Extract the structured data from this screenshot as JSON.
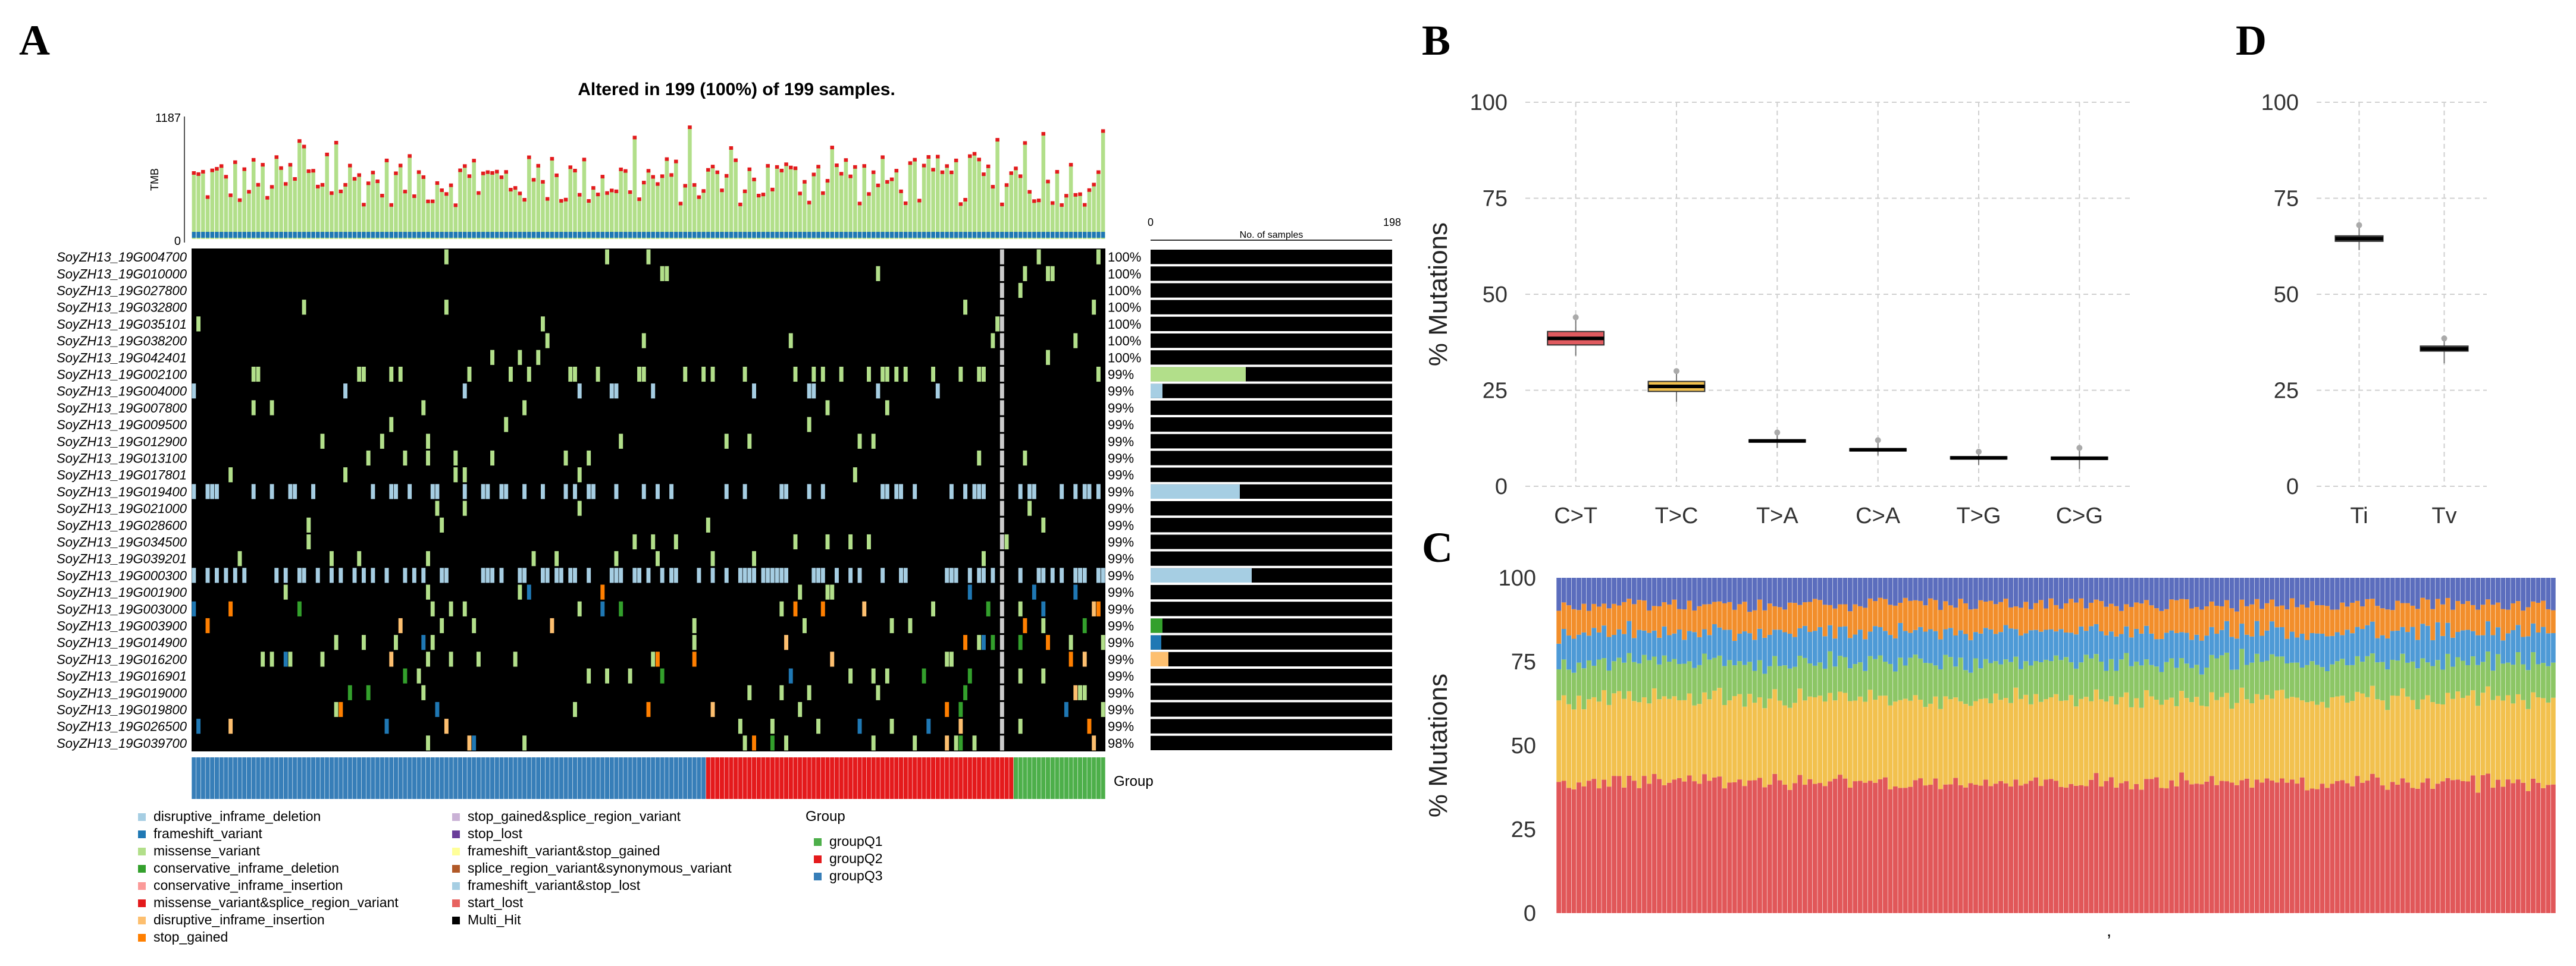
{
  "colors": {
    "disruptive_inframe_deletion": "#a6cee3",
    "frameshift_variant": "#1f78b4",
    "missense_variant": "#b2df8a",
    "conservative_inframe_deletion": "#33a02c",
    "conservative_inframe_insertion": "#fb9a99",
    "missense_variant&splice_region_variant": "#e31a1c",
    "disruptive_inframe_insertion": "#fdbf6f",
    "stop_gained": "#ff7f00",
    "stop_gained&splice_region_variant": "#cab2d6",
    "stop_lost": "#6a3d9a",
    "frameshift_variant&stop_gained": "#ffff99",
    "splice_region_variant&synonymous_variant": "#b15928",
    "frameshift_variant&stop_lost": "#a6cee3",
    "start_lost": "#e7625f",
    "Multi_Hit": "#000000",
    "groupQ1": "#4daf4a",
    "groupQ2": "#e41a1c",
    "groupQ3": "#377eb8",
    "C>T": "#e15759",
    "T>C": "#f2c14e",
    "T>A": "#8cc665",
    "C>A": "#4e9ad6",
    "T>G": "#f28e2b",
    "C>G": "#5b6dbd"
  },
  "panels": {
    "A": "A",
    "B": "B",
    "C": "C",
    "D": "D"
  },
  "oncoplot": {
    "title": "Altered in 199 (100%) of 199 samples.",
    "tmb_label": "TMB",
    "tmb_max": "1187",
    "tmb_min": "0",
    "samples_axis_min": "0",
    "samples_axis_max": "198",
    "samples_axis_label": "No. of samples",
    "group_label": "Group",
    "n_samples": 199,
    "genes": [
      {
        "name": "SoyZH13_19G004700",
        "pct": "100%"
      },
      {
        "name": "SoyZH13_19G010000",
        "pct": "100%"
      },
      {
        "name": "SoyZH13_19G027800",
        "pct": "100%"
      },
      {
        "name": "SoyZH13_19G032800",
        "pct": "100%"
      },
      {
        "name": "SoyZH13_19G035101",
        "pct": "100%"
      },
      {
        "name": "SoyZH13_19G038200",
        "pct": "100%"
      },
      {
        "name": "SoyZH13_19G042401",
        "pct": "100%"
      },
      {
        "name": "SoyZH13_19G002100",
        "pct": "99%"
      },
      {
        "name": "SoyZH13_19G004000",
        "pct": "99%"
      },
      {
        "name": "SoyZH13_19G007800",
        "pct": "99%"
      },
      {
        "name": "SoyZH13_19G009500",
        "pct": "99%"
      },
      {
        "name": "SoyZH13_19G012900",
        "pct": "99%"
      },
      {
        "name": "SoyZH13_19G013100",
        "pct": "99%"
      },
      {
        "name": "SoyZH13_19G017801",
        "pct": "99%"
      },
      {
        "name": "SoyZH13_19G019400",
        "pct": "99%"
      },
      {
        "name": "SoyZH13_19G021000",
        "pct": "99%"
      },
      {
        "name": "SoyZH13_19G028600",
        "pct": "99%"
      },
      {
        "name": "SoyZH13_19G034500",
        "pct": "99%"
      },
      {
        "name": "SoyZH13_19G039201",
        "pct": "99%"
      },
      {
        "name": "SoyZH13_19G000300",
        "pct": "99%"
      },
      {
        "name": "SoyZH13_19G001900",
        "pct": "99%"
      },
      {
        "name": "SoyZH13_19G003000",
        "pct": "99%"
      },
      {
        "name": "SoyZH13_19G003900",
        "pct": "99%"
      },
      {
        "name": "SoyZH13_19G014900",
        "pct": "99%"
      },
      {
        "name": "SoyZH13_19G016200",
        "pct": "99%"
      },
      {
        "name": "SoyZH13_19G016901",
        "pct": "99%"
      },
      {
        "name": "SoyZH13_19G019000",
        "pct": "99%"
      },
      {
        "name": "SoyZH13_19G019800",
        "pct": "99%"
      },
      {
        "name": "SoyZH13_19G026500",
        "pct": "99%"
      },
      {
        "name": "SoyZH13_19G039700",
        "pct": "98%"
      }
    ],
    "groups": [
      {
        "name": "groupQ3",
        "count": 112
      },
      {
        "name": "groupQ2",
        "count": 67
      },
      {
        "name": "groupQ1",
        "count": 20
      }
    ],
    "legend_variants": [
      "disruptive_inframe_deletion",
      "frameshift_variant",
      "missense_variant",
      "conservative_inframe_deletion",
      "conservative_inframe_insertion",
      "missense_variant&splice_region_variant",
      "disruptive_inframe_insertion",
      "stop_gained",
      "stop_gained&splice_region_variant",
      "stop_lost",
      "frameshift_variant&stop_gained",
      "splice_region_variant&synonymous_variant",
      "frameshift_variant&stop_lost",
      "start_lost",
      "Multi_Hit"
    ],
    "legend_group_title": "Group",
    "legend_groups": [
      "groupQ1",
      "groupQ2",
      "groupQ3"
    ]
  },
  "chart_data": [
    {
      "panel": "B",
      "type": "box",
      "ylabel": "% Mutations",
      "ylim": [
        0,
        100
      ],
      "yticks": [
        "0",
        "25",
        "50",
        "75",
        "100"
      ],
      "categories": [
        "C>T",
        "T>C",
        "T>A",
        "C>A",
        "T>G",
        "C>G"
      ],
      "median": [
        38.5,
        26,
        11.8,
        9.5,
        7.4,
        7.3
      ],
      "q1": [
        36.8,
        24.7,
        11.5,
        9.2,
        7.1,
        7.0
      ],
      "q3": [
        40.3,
        27.3,
        12.1,
        9.8,
        7.7,
        7.6
      ],
      "whisker_low": [
        34,
        22,
        10,
        8,
        5.5,
        4.5
      ],
      "whisker_high": [
        44,
        30,
        14,
        12,
        9,
        10
      ],
      "grid": true
    },
    {
      "panel": "D",
      "type": "box",
      "ylabel": "",
      "ylim": [
        0,
        100
      ],
      "yticks": [
        "0",
        "25",
        "50",
        "75",
        "100"
      ],
      "categories": [
        "Ti",
        "Tv"
      ],
      "median": [
        64.5,
        35.8
      ],
      "q1": [
        63.8,
        35.2
      ],
      "q3": [
        65.2,
        36.5
      ],
      "whisker_low": [
        61.5,
        32
      ],
      "whisker_high": [
        68,
        38.5
      ],
      "grid": true
    },
    {
      "panel": "C",
      "type": "bar",
      "stacked": true,
      "ylabel": "% Mutations",
      "ylim": [
        0,
        100
      ],
      "yticks": [
        "0",
        "25",
        "50",
        "75",
        "100"
      ],
      "n_samples": 199,
      "xlabel": ",",
      "series": [
        {
          "name": "C>T",
          "mean": 39
        },
        {
          "name": "T>C",
          "mean": 25
        },
        {
          "name": "T>A",
          "mean": 11
        },
        {
          "name": "C>A",
          "mean": 9
        },
        {
          "name": "T>G",
          "mean": 8
        },
        {
          "name": "C>G",
          "mean": 8
        }
      ]
    }
  ]
}
